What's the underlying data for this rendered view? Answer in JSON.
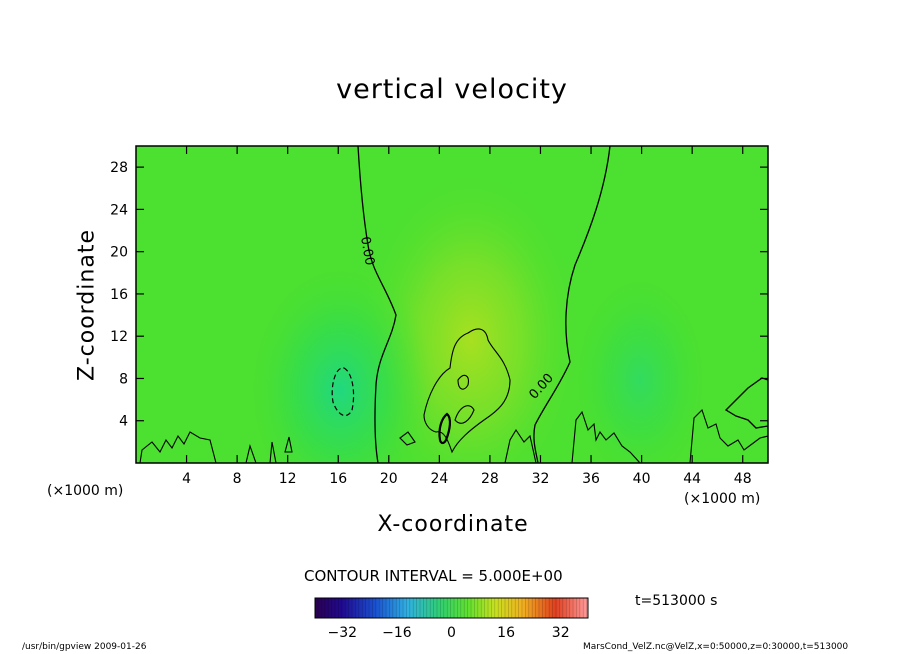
{
  "chart_data": {
    "type": "heatmap",
    "title": "vertical velocity",
    "xlabel": "X-coordinate",
    "ylabel": "Z-coordinate",
    "x_unit_label": "(×1000 m)",
    "xlim": [
      0,
      50
    ],
    "ylim": [
      0,
      30
    ],
    "x_ticks": [
      4,
      8,
      12,
      16,
      20,
      24,
      28,
      32,
      36,
      40,
      44,
      48
    ],
    "y_ticks": [
      4,
      8,
      12,
      16,
      20,
      24,
      28
    ],
    "contour_interval_text": "CONTOUR INTERVAL = 5.000E+00",
    "contour_labels": [
      "0.00",
      "0.00"
    ],
    "colorbar": {
      "range": [
        -40,
        40
      ],
      "ticks": [
        -32,
        -16,
        0,
        16,
        32
      ],
      "colors": [
        "#2a0050",
        "#1a2ab0",
        "#2080e0",
        "#40c8d0",
        "#30d060",
        "#60e030",
        "#d0e020",
        "#f0a020",
        "#e04020",
        "#ff9090"
      ]
    },
    "field_features": [
      {
        "kind": "updraft",
        "x": 26.5,
        "z": 9,
        "peak": 6
      },
      {
        "kind": "downdraft",
        "x": 16.5,
        "z": 7,
        "peak": -5
      },
      {
        "kind": "downdraft",
        "x": 40,
        "z": 8,
        "peak": -2
      }
    ],
    "time_label": "t=513000 s",
    "footer_left": "/usr/bin/gpview  2009-01-26",
    "footer_right": "MarsCond_VelZ.nc@VelZ,x=0:50000,z=0:30000,t=513000"
  }
}
